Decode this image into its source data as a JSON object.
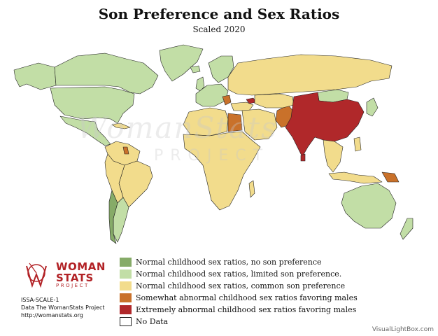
{
  "title": "Son Preference and Sex Ratios",
  "subtitle": "Scaled 2020",
  "watermark": {
    "line1": "WomanStats",
    "line2": "PROJECT"
  },
  "logo": {
    "word1": "WOMAN",
    "word2": "STATS",
    "word3": "PROJECT"
  },
  "credits": {
    "code": "ISSA-SCALE-1",
    "source": "Data The WomanStats Project",
    "url": "http://womanstats.org"
  },
  "legend": [
    {
      "label": "Normal childhood sex ratios, no son preference",
      "color": "#86ab68"
    },
    {
      "label": "Normal childhood sex ratios, limited son preference.",
      "color": "#c2dea6"
    },
    {
      "label": "Normal childhood sex ratios, common son preference",
      "color": "#f2dc8c"
    },
    {
      "label": "Somewhat abnormal childhood sex ratios favoring males",
      "color": "#c9712a"
    },
    {
      "label": "Extremely abnormal childhood sex ratios favoring males",
      "color": "#b0282a"
    },
    {
      "label": "No Data",
      "color": "#ffffff"
    }
  ],
  "footer_credit": "VisualLightBox.com",
  "colors": {
    "no_preference": "#86ab68",
    "limited": "#c2dea6",
    "common": "#f2dc8c",
    "somewhat_abnormal": "#c9712a",
    "extremely_abnormal": "#b0282a",
    "border": "#222222"
  }
}
